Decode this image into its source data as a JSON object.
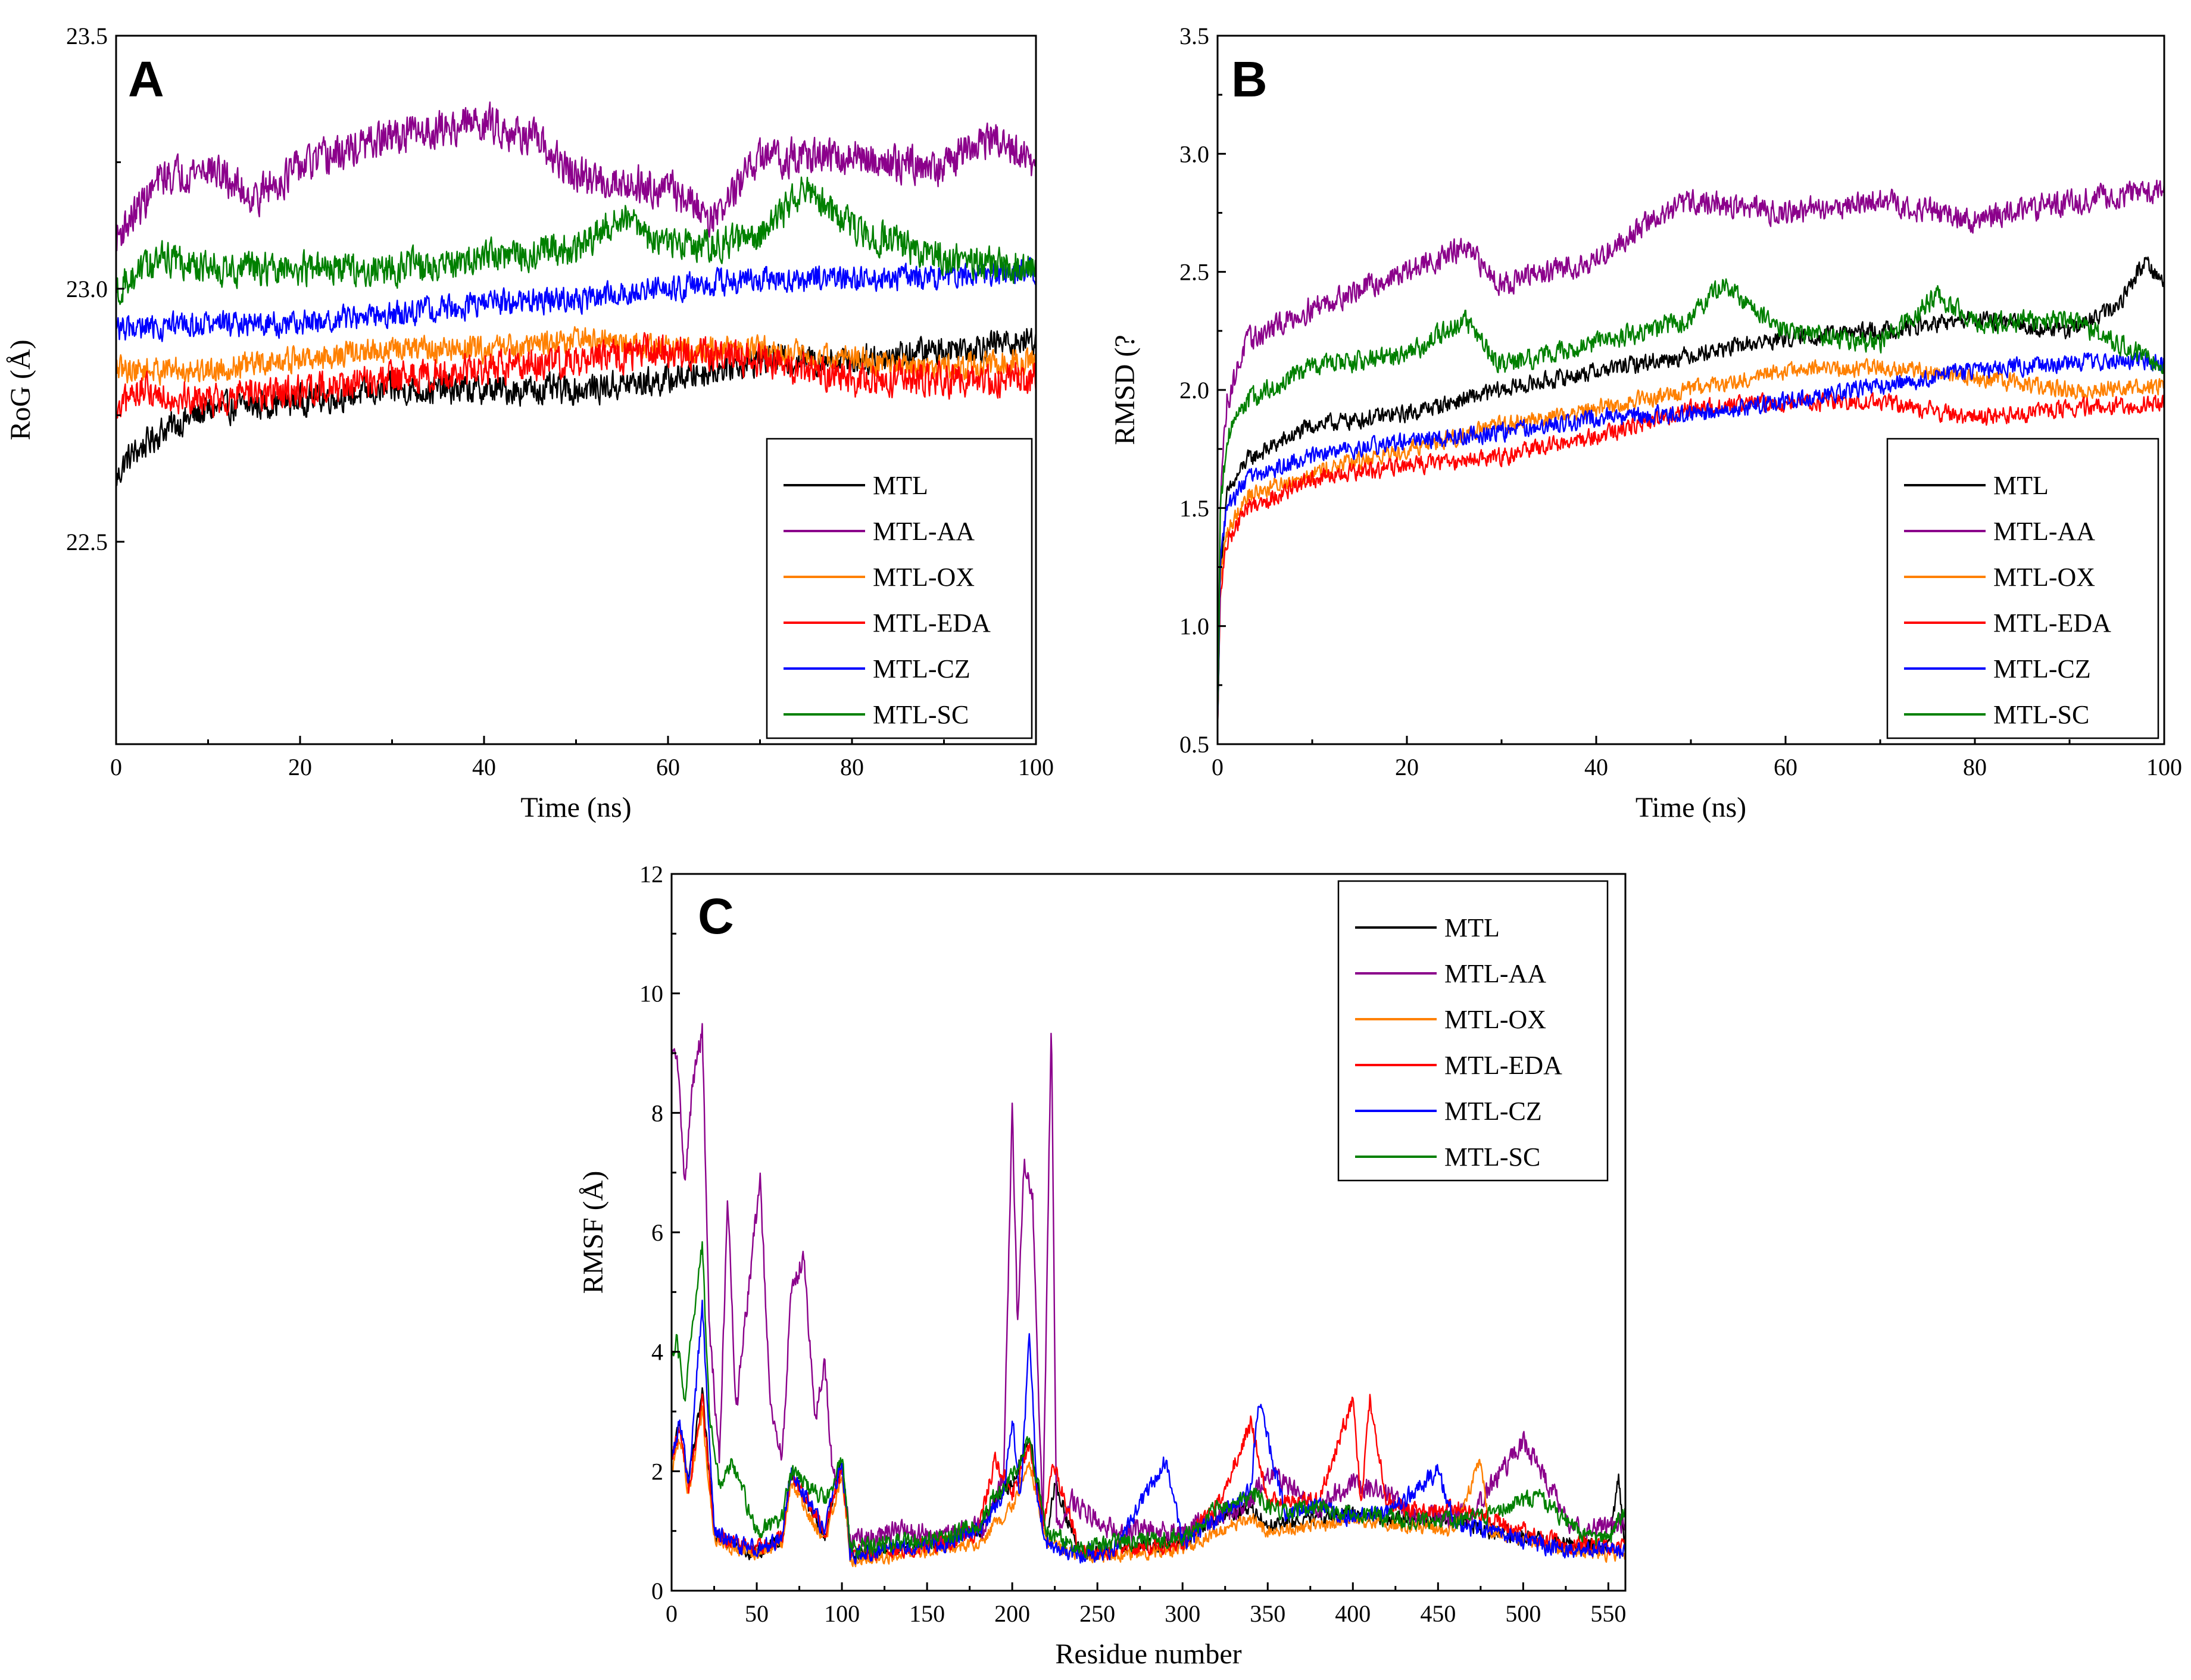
{
  "colors": {
    "MTL": "#000000",
    "MTL-AA": "#8b008b",
    "MTL-OX": "#ff8000",
    "MTL-EDA": "#ff0000",
    "MTL-CZ": "#0000ff",
    "MTL-SC": "#008000"
  },
  "chart_data": [
    {
      "panel": "A",
      "type": "line",
      "xlabel": "Time (ns)",
      "ylabel": "RoG (Å)",
      "xlim": [
        0,
        100
      ],
      "ylim": [
        22.1,
        23.5
      ],
      "xticks": [
        "0",
        "20",
        "40",
        "60",
        "80",
        "100"
      ],
      "xtick_values": [
        0,
        20,
        40,
        60,
        80,
        100
      ],
      "yticks": [
        "22.5",
        "23.0",
        "23.5"
      ],
      "ytick_values": [
        22.5,
        23.0,
        23.5
      ],
      "legend": [
        "MTL",
        "MTL-AA",
        "MTL-OX",
        "MTL-EDA",
        "MTL-CZ",
        "MTL-SC"
      ],
      "series": [
        {
          "name": "MTL",
          "x": [
            0,
            1,
            5,
            10,
            20,
            30,
            40,
            50,
            60,
            70,
            80,
            90,
            100
          ],
          "values": [
            22.62,
            22.66,
            22.72,
            22.76,
            22.78,
            22.8,
            22.8,
            22.8,
            22.82,
            22.86,
            22.86,
            22.88,
            22.9
          ],
          "noise": 0.04
        },
        {
          "name": "MTL-AA",
          "x": [
            0,
            5,
            10,
            15,
            20,
            30,
            40,
            45,
            50,
            60,
            65,
            70,
            80,
            90,
            95,
            100
          ],
          "values": [
            23.1,
            23.22,
            23.24,
            23.18,
            23.24,
            23.3,
            23.33,
            23.3,
            23.22,
            23.2,
            23.14,
            23.26,
            23.26,
            23.24,
            23.3,
            23.24
          ],
          "noise": 0.05
        },
        {
          "name": "MTL-OX",
          "x": [
            0,
            2,
            10,
            20,
            30,
            40,
            50,
            60,
            70,
            80,
            90,
            100
          ],
          "values": [
            22.84,
            22.84,
            22.84,
            22.86,
            22.88,
            22.88,
            22.9,
            22.88,
            22.88,
            22.86,
            22.84,
            22.86
          ],
          "noise": 0.035
        },
        {
          "name": "MTL-EDA",
          "x": [
            0,
            2,
            10,
            20,
            30,
            40,
            50,
            60,
            70,
            80,
            90,
            100
          ],
          "values": [
            22.74,
            22.8,
            22.78,
            22.8,
            22.82,
            22.84,
            22.86,
            22.88,
            22.86,
            22.82,
            22.82,
            22.82
          ],
          "noise": 0.045
        },
        {
          "name": "MTL-CZ",
          "x": [
            0,
            2,
            10,
            20,
            30,
            40,
            50,
            60,
            70,
            80,
            90,
            100
          ],
          "values": [
            22.92,
            22.92,
            22.93,
            22.93,
            22.95,
            22.97,
            22.98,
            23.0,
            23.02,
            23.02,
            23.02,
            23.04
          ],
          "noise": 0.035
        },
        {
          "name": "MTL-SC",
          "x": [
            0,
            5,
            10,
            20,
            30,
            40,
            50,
            55,
            60,
            70,
            75,
            80,
            90,
            100
          ],
          "values": [
            23.0,
            23.06,
            23.04,
            23.04,
            23.04,
            23.06,
            23.08,
            23.14,
            23.08,
            23.1,
            23.2,
            23.12,
            23.06,
            23.04
          ],
          "noise": 0.045
        }
      ]
    },
    {
      "panel": "B",
      "type": "line",
      "xlabel": "Time (ns)",
      "ylabel": "RMSD (?",
      "xlim": [
        0,
        100
      ],
      "ylim": [
        0.5,
        3.5
      ],
      "xticks": [
        "0",
        "20",
        "40",
        "60",
        "80",
        "100"
      ],
      "xtick_values": [
        0,
        20,
        40,
        60,
        80,
        100
      ],
      "yticks": [
        "0.5",
        "1.0",
        "1.5",
        "2.0",
        "2.5",
        "3.0",
        "3.5"
      ],
      "ytick_values": [
        0.5,
        1.0,
        1.5,
        2.0,
        2.5,
        3.0,
        3.5
      ],
      "legend": [
        "MTL",
        "MTL-AA",
        "MTL-OX",
        "MTL-EDA",
        "MTL-CZ",
        "MTL-SC"
      ],
      "series": [
        {
          "name": "MTL",
          "x": [
            0,
            0.3,
            1,
            3,
            10,
            20,
            30,
            40,
            50,
            60,
            70,
            80,
            90,
            95,
            98,
            100
          ],
          "values": [
            0.55,
            1.25,
            1.55,
            1.7,
            1.85,
            1.9,
            2.0,
            2.08,
            2.15,
            2.22,
            2.25,
            2.3,
            2.25,
            2.35,
            2.55,
            2.45
          ],
          "noise": 0.05
        },
        {
          "name": "MTL-AA",
          "x": [
            0,
            0.3,
            1,
            3,
            10,
            20,
            26,
            30,
            40,
            45,
            50,
            60,
            70,
            80,
            90,
            100
          ],
          "values": [
            0.55,
            1.6,
            1.95,
            2.2,
            2.35,
            2.5,
            2.6,
            2.45,
            2.55,
            2.7,
            2.8,
            2.75,
            2.8,
            2.72,
            2.8,
            2.85
          ],
          "noise": 0.07
        },
        {
          "name": "MTL-OX",
          "x": [
            0,
            0.3,
            1,
            3,
            10,
            20,
            30,
            40,
            50,
            60,
            70,
            80,
            90,
            100
          ],
          "values": [
            0.55,
            1.2,
            1.4,
            1.55,
            1.65,
            1.75,
            1.85,
            1.92,
            2.0,
            2.08,
            2.1,
            2.05,
            2.0,
            2.02
          ],
          "noise": 0.05
        },
        {
          "name": "MTL-EDA",
          "x": [
            0,
            0.3,
            1,
            3,
            10,
            20,
            30,
            40,
            50,
            60,
            70,
            80,
            90,
            100
          ],
          "values": [
            0.55,
            1.15,
            1.35,
            1.5,
            1.62,
            1.68,
            1.72,
            1.8,
            1.92,
            1.95,
            1.95,
            1.88,
            1.92,
            1.95
          ],
          "noise": 0.05
        },
        {
          "name": "MTL-CZ",
          "x": [
            0,
            0.3,
            1,
            3,
            10,
            20,
            30,
            40,
            50,
            60,
            70,
            80,
            90,
            100
          ],
          "values": [
            0.55,
            1.3,
            1.5,
            1.62,
            1.72,
            1.78,
            1.82,
            1.88,
            1.9,
            1.95,
            2.02,
            2.08,
            2.12,
            2.12
          ],
          "noise": 0.05
        },
        {
          "name": "MTL-SC",
          "x": [
            0,
            0.3,
            1,
            3,
            10,
            20,
            26,
            30,
            40,
            50,
            53,
            60,
            70,
            76,
            80,
            90,
            100
          ],
          "values": [
            0.55,
            1.5,
            1.8,
            1.95,
            2.1,
            2.15,
            2.3,
            2.1,
            2.2,
            2.3,
            2.45,
            2.25,
            2.2,
            2.4,
            2.28,
            2.3,
            2.1
          ],
          "noise": 0.06
        }
      ]
    },
    {
      "panel": "C",
      "type": "line",
      "xlabel": "Residue number",
      "ylabel": "RMSF (Å)",
      "xlim": [
        0,
        560
      ],
      "ylim": [
        0,
        12
      ],
      "xticks": [
        "0",
        "50",
        "100",
        "150",
        "200",
        "250",
        "300",
        "350",
        "400",
        "450",
        "500",
        "550"
      ],
      "xtick_values": [
        0,
        50,
        100,
        150,
        200,
        250,
        300,
        350,
        400,
        450,
        500,
        550
      ],
      "yticks": [
        "0",
        "2",
        "4",
        "6",
        "8",
        "10",
        "12"
      ],
      "ytick_values": [
        0,
        2,
        4,
        6,
        8,
        10,
        12
      ],
      "legend": [
        "MTL",
        "MTL-AA",
        "MTL-OX",
        "MTL-EDA",
        "MTL-CZ",
        "MTL-SC"
      ],
      "series": [
        {
          "name": "MTL",
          "x": [
            0,
            5,
            10,
            18,
            25,
            35,
            50,
            65,
            70,
            90,
            100,
            105,
            130,
            160,
            180,
            190,
            200,
            210,
            220,
            225,
            240,
            260,
            300,
            320,
            340,
            350,
            380,
            400,
            430,
            460,
            480,
            520,
            550,
            556,
            560
          ],
          "values": [
            2.2,
            2.8,
            1.8,
            3.3,
            1.0,
            0.8,
            0.6,
            0.9,
            2.0,
            0.9,
            2.2,
            0.6,
            0.7,
            0.8,
            1.0,
            1.5,
            1.8,
            2.6,
            0.9,
            1.8,
            0.6,
            0.7,
            0.8,
            1.2,
            1.4,
            1.1,
            1.2,
            1.3,
            1.2,
            1.2,
            1.0,
            0.8,
            0.7,
            1.9,
            0.7
          ],
          "noise": 0.18
        },
        {
          "name": "MTL-AA",
          "x": [
            0,
            3,
            8,
            12,
            18,
            22,
            28,
            33,
            38,
            45,
            52,
            58,
            65,
            70,
            78,
            84,
            90,
            95,
            100,
            105,
            130,
            160,
            185,
            195,
            200,
            203,
            207,
            212,
            218,
            223,
            226,
            235,
            260,
            300,
            340,
            350,
            380,
            400,
            420,
            440,
            470,
            500,
            530,
            560
          ],
          "values": [
            8.9,
            9.0,
            6.8,
            8.4,
            9.4,
            4.5,
            2.2,
            6.5,
            3.0,
            5.0,
            6.9,
            3.0,
            2.2,
            5.0,
            5.6,
            2.8,
            3.8,
            1.8,
            2.1,
            0.8,
            1.0,
            0.9,
            1.1,
            2.0,
            8.1,
            4.5,
            7.2,
            6.5,
            1.0,
            9.7,
            1.0,
            1.5,
            1.0,
            1.0,
            1.5,
            2.0,
            1.4,
            1.8,
            1.6,
            1.2,
            1.3,
            2.5,
            1.0,
            1.1
          ],
          "noise": 0.25
        },
        {
          "name": "MTL-OX",
          "x": [
            0,
            5,
            10,
            18,
            25,
            35,
            50,
            65,
            70,
            90,
            100,
            105,
            130,
            160,
            180,
            200,
            210,
            220,
            240,
            260,
            300,
            320,
            340,
            350,
            380,
            400,
            430,
            460,
            475,
            480,
            520,
            550,
            560
          ],
          "values": [
            2.0,
            2.6,
            1.6,
            3.0,
            0.9,
            0.7,
            0.6,
            0.8,
            1.8,
            0.8,
            2.0,
            0.5,
            0.6,
            0.7,
            0.8,
            1.4,
            2.2,
            0.8,
            0.6,
            0.6,
            0.7,
            1.0,
            1.2,
            1.0,
            1.1,
            1.2,
            1.1,
            1.0,
            2.2,
            1.0,
            0.7,
            0.6,
            0.6
          ],
          "noise": 0.16
        },
        {
          "name": "MTL-EDA",
          "x": [
            0,
            5,
            10,
            18,
            25,
            35,
            50,
            65,
            70,
            90,
            100,
            105,
            130,
            160,
            180,
            190,
            200,
            210,
            218,
            224,
            240,
            260,
            300,
            320,
            340,
            350,
            380,
            400,
            405,
            410,
            420,
            440,
            460,
            480,
            520,
            550,
            560
          ],
          "values": [
            2.2,
            2.7,
            1.7,
            3.2,
            1.0,
            0.8,
            0.7,
            0.9,
            2.0,
            1.0,
            2.1,
            0.6,
            0.7,
            0.8,
            1.0,
            2.2,
            1.6,
            2.5,
            1.0,
            2.2,
            0.6,
            0.7,
            0.8,
            1.4,
            2.8,
            1.5,
            1.5,
            3.2,
            1.4,
            3.2,
            1.5,
            1.3,
            1.4,
            1.2,
            0.8,
            0.7,
            0.7
          ],
          "noise": 0.2
        },
        {
          "name": "MTL-CZ",
          "x": [
            0,
            5,
            10,
            18,
            25,
            35,
            50,
            65,
            70,
            90,
            100,
            105,
            130,
            160,
            180,
            195,
            200,
            205,
            210,
            215,
            220,
            240,
            260,
            290,
            300,
            320,
            340,
            345,
            360,
            380,
            400,
            420,
            450,
            460,
            480,
            520,
            550,
            560
          ],
          "values": [
            2.3,
            2.8,
            1.8,
            4.8,
            1.0,
            0.8,
            0.7,
            0.9,
            2.0,
            1.0,
            2.2,
            0.6,
            0.7,
            0.8,
            1.0,
            1.6,
            2.9,
            1.5,
            4.3,
            1.5,
            0.8,
            0.6,
            0.7,
            2.2,
            0.8,
            1.2,
            1.7,
            3.2,
            1.3,
            1.4,
            1.2,
            1.3,
            2.0,
            1.1,
            1.0,
            0.7,
            0.7,
            0.6
          ],
          "noise": 0.2
        },
        {
          "name": "MTL-SC",
          "x": [
            0,
            3,
            8,
            12,
            18,
            22,
            28,
            35,
            50,
            65,
            70,
            90,
            100,
            105,
            130,
            160,
            180,
            190,
            200,
            210,
            220,
            240,
            260,
            300,
            320,
            340,
            360,
            380,
            400,
            430,
            460,
            480,
            510,
            530,
            550,
            560
          ],
          "values": [
            3.8,
            4.2,
            3.2,
            4.4,
            5.8,
            3.0,
            1.8,
            2.2,
            1.0,
            1.2,
            2.0,
            1.5,
            2.2,
            0.7,
            0.8,
            0.9,
            1.1,
            1.6,
            1.9,
            2.6,
            1.0,
            0.7,
            0.8,
            0.9,
            1.4,
            1.6,
            1.3,
            1.4,
            1.3,
            1.2,
            1.2,
            1.3,
            1.6,
            1.0,
            0.8,
            1.4
          ],
          "noise": 0.2
        }
      ]
    }
  ]
}
